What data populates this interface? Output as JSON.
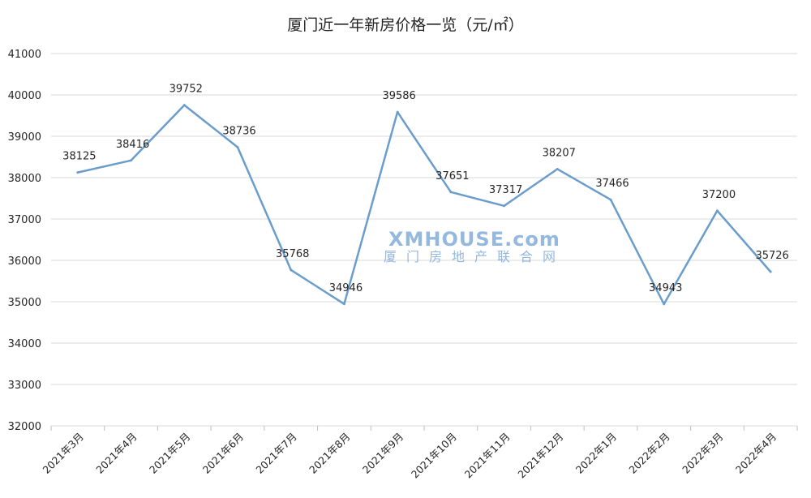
{
  "chart_data": {
    "type": "line",
    "title": "厦门近一年新房价格一览（元/㎡）",
    "categories": [
      "2021年3月",
      "2021年4月",
      "2021年5月",
      "2021年6月",
      "2021年7月",
      "2021年8月",
      "2021年9月",
      "2021年10月",
      "2021年11月",
      "2021年12月",
      "2022年1月",
      "2022年2月",
      "2022年3月",
      "2022年4月"
    ],
    "series": [
      {
        "values": [
          38125,
          38416,
          39752,
          38736,
          35768,
          34946,
          39586,
          37651,
          37317,
          38207,
          37466,
          34943,
          37200,
          35726
        ]
      }
    ],
    "ylim": [
      32000,
      41000
    ],
    "yticks": [
      32000,
      33000,
      34000,
      35000,
      36000,
      37000,
      38000,
      39000,
      40000,
      41000
    ],
    "xlabel": "",
    "ylabel": "",
    "grid": true,
    "line_color": "#6a9dcb"
  },
  "watermark": {
    "text": "XMHOUSE.com",
    "subtext": "厦门房地产联合网"
  }
}
